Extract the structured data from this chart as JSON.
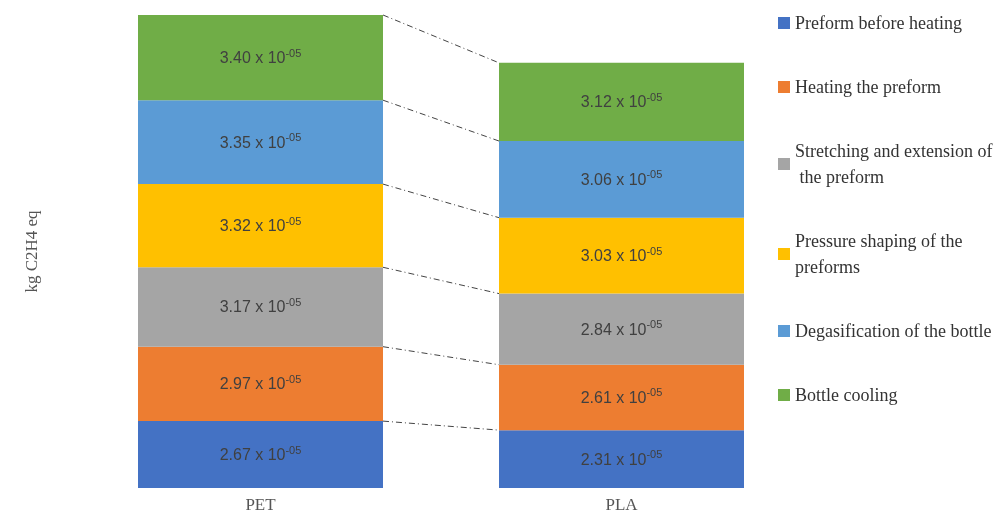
{
  "chart_data": {
    "type": "bar",
    "stacked": true,
    "ylabel": "kg C2H4 eq",
    "categories": [
      "PET",
      "PLA"
    ],
    "legend": "right",
    "series": [
      {
        "name": "Preform before heating",
        "color": "#4472c4",
        "values": [
          2.67e-05,
          2.31e-05
        ],
        "value_labels": [
          "2.67 x 10$^{-05}$",
          "2.31 x 10$^{-05}$"
        ]
      },
      {
        "name": "Heating the preform",
        "color": "#ed7d31",
        "values": [
          2.97e-05,
          2.61e-05
        ],
        "value_labels": [
          "2.97 x 10$^{-05}$",
          "2.61 x 10$^{-05}$"
        ]
      },
      {
        "name": "Stretching and extension of the preform",
        "color": "#a5a5a5",
        "values": [
          3.17e-05,
          2.84e-05
        ],
        "value_labels": [
          "3.17 x 10$^{-05}$",
          "2.84 x 10$^{-05}$"
        ]
      },
      {
        "name": "Pressure shaping of the preforms",
        "color": "#ffc000",
        "values": [
          3.32e-05,
          3.03e-05
        ],
        "value_labels": [
          "3.32 x 10$^{-05}$",
          "3.03 x 10$^{-05}$"
        ]
      },
      {
        "name": "Degasification of the bottle",
        "color": "#5b9bd5",
        "values": [
          3.35e-05,
          3.06e-05
        ],
        "value_labels": [
          "3.35 x 10$^{-05}$",
          "3.06 x 10$^{-05}$"
        ]
      },
      {
        "name": "Bottle cooling",
        "color": "#70ad47",
        "values": [
          3.4e-05,
          3.12e-05
        ],
        "value_labels": [
          "3.40 x 10$^{-05}$",
          "3.12 x 10$^{-05}$"
        ]
      }
    ]
  }
}
